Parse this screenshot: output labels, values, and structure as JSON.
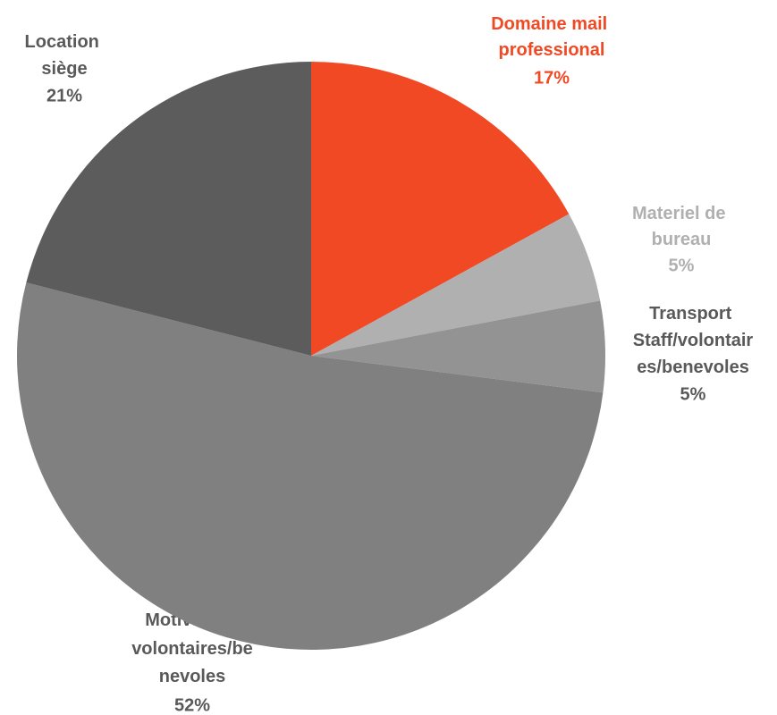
{
  "chart_data": {
    "type": "pie",
    "categories": [
      "Domaine mail professional",
      "Materiel de bureau",
      "Transport Staff/volontaires/benevoles",
      "Motivation volontaires/benevoles",
      "Location siège"
    ],
    "values": [
      17,
      5,
      5,
      52,
      21
    ],
    "value_labels": [
      "17%",
      "5%",
      "5%",
      "52%",
      "21%"
    ],
    "colors": [
      "#f04923",
      "#b0b0b0",
      "#939393",
      "#808080",
      "#5c5c5c"
    ]
  }
}
